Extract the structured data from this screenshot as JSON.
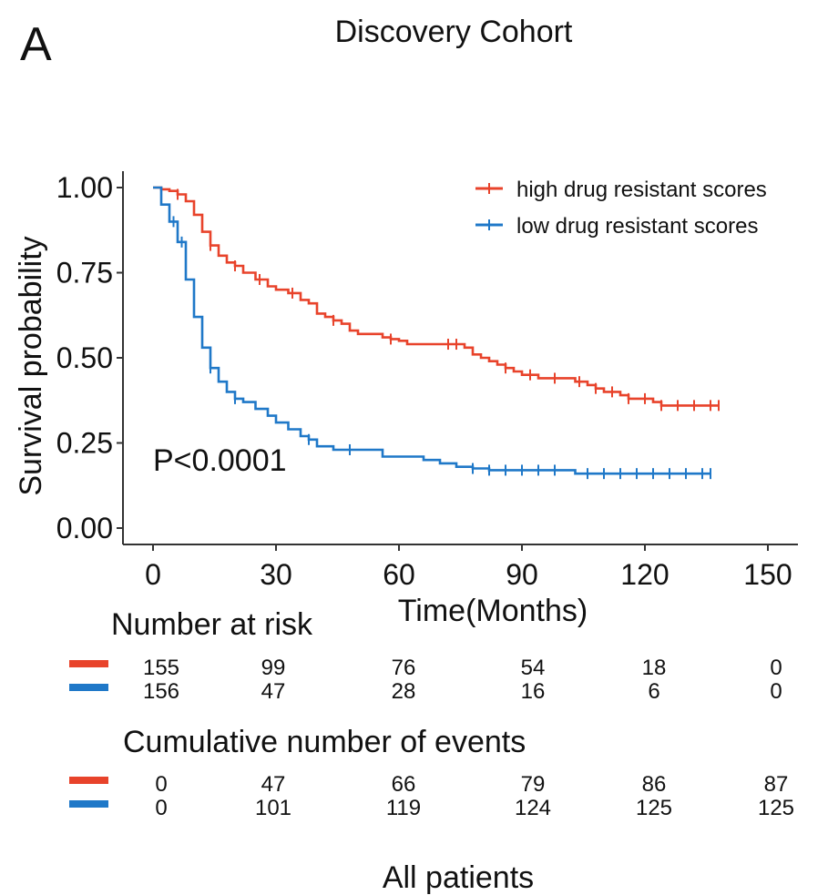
{
  "panel_label": "A",
  "colors": {
    "high": "#e8432b",
    "low": "#1f78c8",
    "axis": "#333333"
  },
  "chart_data": {
    "type": "line",
    "title": "Discovery Cohort",
    "xlabel": "Time(Months)",
    "ylabel": "Survival probability",
    "xlim": [
      -5,
      150
    ],
    "ylim": [
      0,
      1
    ],
    "xticks": [
      "0",
      "30",
      "60",
      "90",
      "120",
      "150"
    ],
    "yticks": [
      "0.00",
      "0.25",
      "0.50",
      "0.75",
      "1.00"
    ],
    "annotation": "P<0.0001",
    "legend_position": "top-right",
    "series": [
      {
        "name": "high drug resistant scores",
        "color": "#e8432b",
        "x": [
          0,
          2,
          4,
          6,
          8,
          10,
          12,
          14,
          16,
          18,
          20,
          22,
          25,
          28,
          30,
          33,
          36,
          38,
          40,
          42,
          44,
          46,
          48,
          50,
          53,
          56,
          58,
          60,
          62,
          66,
          70,
          74,
          76,
          78,
          80,
          82,
          84,
          86,
          88,
          90,
          92,
          94,
          96,
          100,
          103,
          106,
          108,
          110,
          112,
          114,
          116,
          118,
          120,
          122,
          124,
          126,
          128,
          130,
          132,
          134,
          136,
          138
        ],
        "y": [
          1.0,
          0.995,
          0.99,
          0.98,
          0.96,
          0.92,
          0.87,
          0.83,
          0.8,
          0.78,
          0.77,
          0.75,
          0.73,
          0.71,
          0.7,
          0.69,
          0.67,
          0.66,
          0.63,
          0.62,
          0.61,
          0.6,
          0.58,
          0.57,
          0.57,
          0.56,
          0.555,
          0.55,
          0.54,
          0.54,
          0.54,
          0.54,
          0.53,
          0.51,
          0.5,
          0.49,
          0.48,
          0.47,
          0.46,
          0.45,
          0.45,
          0.44,
          0.44,
          0.44,
          0.43,
          0.42,
          0.41,
          0.4,
          0.4,
          0.39,
          0.38,
          0.38,
          0.38,
          0.37,
          0.36,
          0.36,
          0.36,
          0.36,
          0.36,
          0.36,
          0.36,
          0.36
        ],
        "censored_x": [
          6,
          14,
          20,
          26,
          34,
          44,
          58,
          72,
          74,
          86,
          92,
          98,
          104,
          108,
          112,
          116,
          120,
          124,
          128,
          132,
          136,
          138
        ]
      },
      {
        "name": "low drug resistant scores",
        "color": "#1f78c8",
        "x": [
          0,
          2,
          4,
          6,
          8,
          10,
          12,
          14,
          16,
          18,
          20,
          22,
          25,
          28,
          30,
          33,
          36,
          38,
          40,
          44,
          50,
          56,
          60,
          66,
          70,
          74,
          78,
          82,
          86,
          90,
          95,
          100,
          103,
          110,
          120,
          130,
          136
        ],
        "y": [
          1.0,
          0.95,
          0.9,
          0.84,
          0.73,
          0.62,
          0.53,
          0.47,
          0.43,
          0.4,
          0.38,
          0.37,
          0.35,
          0.33,
          0.31,
          0.29,
          0.27,
          0.26,
          0.24,
          0.23,
          0.23,
          0.21,
          0.21,
          0.2,
          0.19,
          0.18,
          0.175,
          0.17,
          0.17,
          0.17,
          0.17,
          0.17,
          0.16,
          0.16,
          0.16,
          0.16,
          0.16
        ],
        "censored_x": [
          5,
          7,
          14,
          20,
          38,
          48,
          78,
          82,
          86,
          90,
          94,
          98,
          106,
          110,
          114,
          118,
          122,
          126,
          130,
          134,
          136
        ]
      }
    ]
  },
  "risk_table": {
    "title": "Number at risk",
    "rows": [
      {
        "series": "high",
        "values": [
          "155",
          "99",
          "76",
          "54",
          "18",
          "0"
        ]
      },
      {
        "series": "low",
        "values": [
          "156",
          "47",
          "28",
          "16",
          "6",
          "0"
        ]
      }
    ]
  },
  "events_table": {
    "title": "Cumulative number of events",
    "rows": [
      {
        "series": "high",
        "values": [
          "0",
          "47",
          "66",
          "79",
          "86",
          "87"
        ]
      },
      {
        "series": "low",
        "values": [
          "0",
          "101",
          "119",
          "124",
          "125",
          "125"
        ]
      }
    ]
  },
  "caption": "All patients"
}
